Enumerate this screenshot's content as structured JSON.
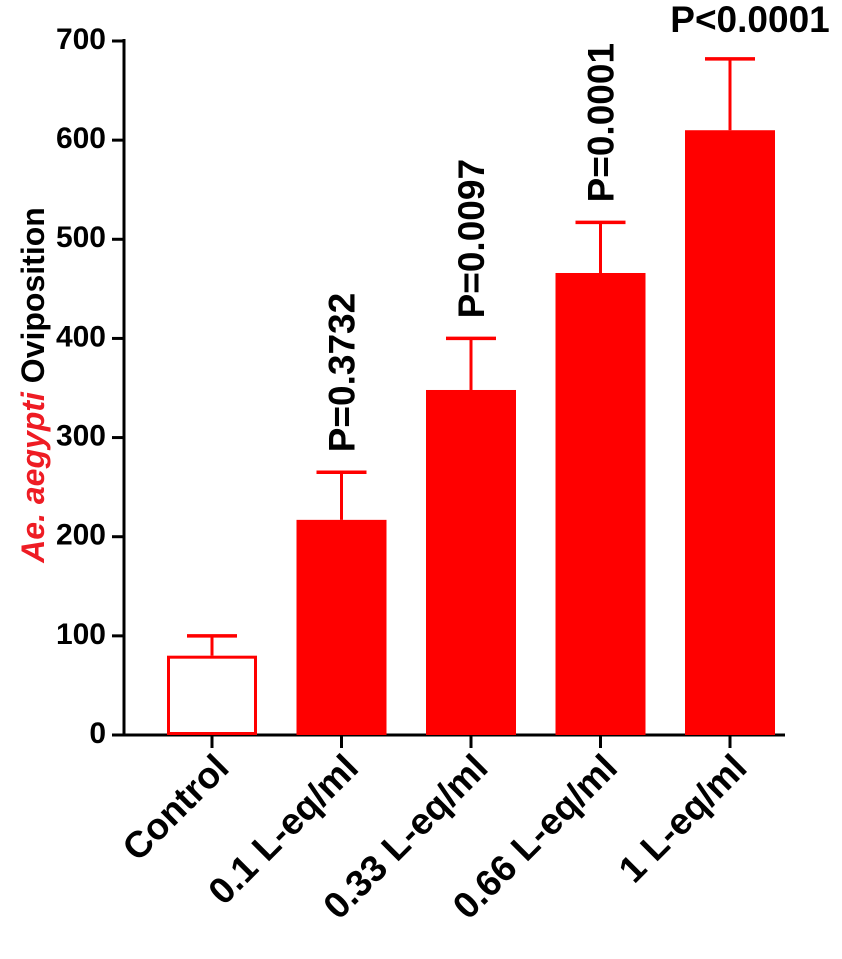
{
  "chart_data": {
    "type": "bar",
    "title": "",
    "xlabel": "",
    "ylabel_species": "Ae. aegypti",
    "ylabel_rest": " Oviposition",
    "ylim": [
      0,
      700
    ],
    "yticks": [
      0,
      100,
      200,
      300,
      400,
      500,
      600,
      700
    ],
    "grid": false,
    "categories": [
      "Control",
      "0.1 L-eq/ml",
      "0.33 L-eq/ml",
      "0.66 L-eq/ml",
      "1 L-eq/ml"
    ],
    "values": [
      80,
      217,
      348,
      466,
      610
    ],
    "errors": [
      20,
      48,
      52,
      51,
      72
    ],
    "annotations": [
      "",
      "P=0.3732",
      "P=0.0097",
      "P=0.0001",
      "P<0.0001"
    ],
    "fill_styles": [
      "open",
      "filled",
      "filled",
      "filled",
      "filled"
    ],
    "colors": {
      "bar": "#ff0000",
      "axis": "#000000",
      "species_label": "#ee1c24"
    }
  }
}
